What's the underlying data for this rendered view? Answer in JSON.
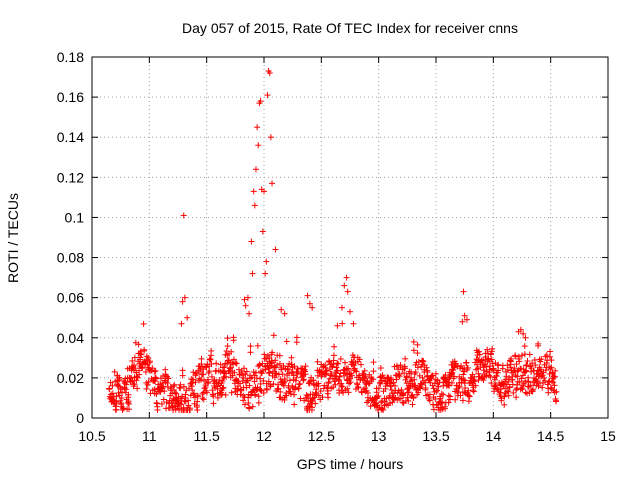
{
  "chart_data": {
    "type": "scatter",
    "title": "Day 057 of 2015, Rate Of TEC Index for receiver cnns",
    "xlabel": "GPS time / hours",
    "ylabel": "ROTI / TECUs",
    "xlim": [
      10.5,
      15
    ],
    "ylim": [
      0,
      0.18
    ],
    "xticks": [
      10.5,
      11,
      11.5,
      12,
      12.5,
      13,
      13.5,
      14,
      14.5,
      15
    ],
    "xtick_labels": [
      "10.5",
      "11",
      "11.5",
      "12",
      "12.5",
      "13",
      "13.5",
      "14",
      "14.5",
      "15"
    ],
    "yticks": [
      0,
      0.02,
      0.04,
      0.06,
      0.08,
      0.1,
      0.12,
      0.14,
      0.16,
      0.18
    ],
    "ytick_labels": [
      "0",
      "0.02",
      "0.04",
      "0.06",
      "0.08",
      "0.1",
      "0.12",
      "0.14",
      "0.16",
      "0.18"
    ],
    "grid": true,
    "marker": "+",
    "marker_color": "#ff0000",
    "series": [
      {
        "name": "ROTI",
        "outliers": {
          "x": [
            11.3,
            11.29,
            11.31,
            11.33,
            11.28,
            11.83,
            11.84,
            11.86,
            11.87,
            11.89,
            11.9,
            11.92,
            11.93,
            11.95,
            11.96,
            11.97,
            11.98,
            12.0,
            12.01,
            12.02,
            12.03,
            12.04,
            12.05,
            12.06,
            12.07,
            11.99,
            11.94,
            11.91,
            12.1,
            12.15,
            12.18,
            12.38,
            12.4,
            12.42,
            12.7,
            12.72,
            12.73,
            12.68,
            12.75,
            12.78,
            12.64,
            13.74,
            13.75,
            13.77,
            13.73,
            14.24,
            14.26,
            14.28,
            14.22
          ],
          "y": [
            0.101,
            0.058,
            0.06,
            0.05,
            0.047,
            0.059,
            0.056,
            0.06,
            0.052,
            0.088,
            0.072,
            0.106,
            0.124,
            0.136,
            0.157,
            0.158,
            0.114,
            0.113,
            0.072,
            0.078,
            0.161,
            0.173,
            0.172,
            0.14,
            0.117,
            0.093,
            0.145,
            0.113,
            0.084,
            0.054,
            0.052,
            0.061,
            0.057,
            0.055,
            0.066,
            0.07,
            0.063,
            0.055,
            0.053,
            0.047,
            0.046,
            0.063,
            0.051,
            0.049,
            0.048,
            0.044,
            0.042,
            0.04,
            0.043
          ]
        },
        "dense_band": {
          "x_start": 10.65,
          "x_end": 14.55,
          "step": 0.004,
          "note": "baseline scatter approximated from the figure",
          "trend": [
            [
              10.65,
              0.016
            ],
            [
              10.8,
              0.018
            ],
            [
              10.95,
              0.02
            ],
            [
              11.05,
              0.015
            ],
            [
              11.2,
              0.012
            ],
            [
              11.35,
              0.014
            ],
            [
              11.5,
              0.016
            ],
            [
              11.7,
              0.019
            ],
            [
              11.85,
              0.021
            ],
            [
              12.0,
              0.018
            ],
            [
              12.2,
              0.016
            ],
            [
              12.45,
              0.019
            ],
            [
              12.7,
              0.02
            ],
            [
              12.9,
              0.017
            ],
            [
              13.1,
              0.015
            ],
            [
              13.4,
              0.016
            ],
            [
              13.7,
              0.018
            ],
            [
              13.95,
              0.021
            ],
            [
              14.2,
              0.023
            ],
            [
              14.4,
              0.019
            ],
            [
              14.55,
              0.015
            ]
          ]
        }
      }
    ]
  }
}
